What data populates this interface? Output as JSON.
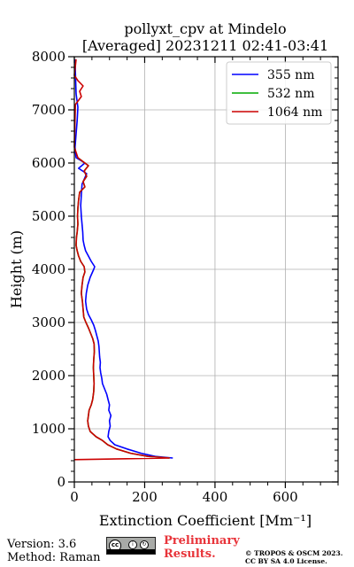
{
  "chart_data": {
    "type": "line",
    "title": "pollyxt_cpv at Mindelo",
    "subtitle": "[Averaged] 20231211 02:41-03:41",
    "xlabel": "Extinction Coefficient [Mm⁻¹]",
    "ylabel": "Height (m)",
    "xlim": [
      0,
      750
    ],
    "ylim": [
      0,
      8000
    ],
    "xticks": [
      0,
      200,
      400,
      600
    ],
    "yticks": [
      0,
      1000,
      2000,
      3000,
      4000,
      5000,
      6000,
      7000,
      8000
    ],
    "grid": true,
    "legend_position": "top-right",
    "series": [
      {
        "name": "355 nm",
        "color": "#0000ff",
        "points": [
          [
            280,
            450
          ],
          [
            230,
            480
          ],
          [
            190,
            540
          ],
          [
            150,
            620
          ],
          [
            115,
            700
          ],
          [
            102,
            780
          ],
          [
            96,
            850
          ],
          [
            98,
            950
          ],
          [
            102,
            1050
          ],
          [
            100,
            1150
          ],
          [
            104,
            1250
          ],
          [
            98,
            1350
          ],
          [
            100,
            1450
          ],
          [
            96,
            1550
          ],
          [
            92,
            1650
          ],
          [
            86,
            1750
          ],
          [
            80,
            1850
          ],
          [
            78,
            1950
          ],
          [
            75,
            2050
          ],
          [
            73,
            2150
          ],
          [
            74,
            2250
          ],
          [
            72,
            2350
          ],
          [
            71,
            2450
          ],
          [
            70,
            2550
          ],
          [
            68,
            2650
          ],
          [
            64,
            2750
          ],
          [
            60,
            2850
          ],
          [
            55,
            2950
          ],
          [
            48,
            3050
          ],
          [
            40,
            3150
          ],
          [
            35,
            3250
          ],
          [
            32,
            3400
          ],
          [
            34,
            3550
          ],
          [
            38,
            3700
          ],
          [
            45,
            3850
          ],
          [
            55,
            4000
          ],
          [
            58,
            4050
          ],
          [
            48,
            4150
          ],
          [
            40,
            4250
          ],
          [
            32,
            4350
          ],
          [
            28,
            4450
          ],
          [
            25,
            4550
          ],
          [
            24,
            4700
          ],
          [
            22,
            4850
          ],
          [
            20,
            5000
          ],
          [
            18,
            5200
          ],
          [
            20,
            5400
          ],
          [
            22,
            5600
          ],
          [
            35,
            5800
          ],
          [
            12,
            5900
          ],
          [
            30,
            6000
          ],
          [
            5,
            6100
          ],
          [
            3,
            6200
          ],
          [
            2,
            6300
          ],
          [
            8,
            6800
          ],
          [
            10,
            7050
          ],
          [
            5,
            7300
          ],
          [
            3,
            7700
          ],
          [
            2,
            7950
          ]
        ]
      },
      {
        "name": "532 nm",
        "color": "#00aa00",
        "points": [
          [
            270,
            450
          ],
          [
            210,
            480
          ],
          [
            160,
            540
          ],
          [
            120,
            620
          ],
          [
            95,
            700
          ],
          [
            80,
            780
          ],
          [
            62,
            850
          ],
          [
            45,
            950
          ],
          [
            40,
            1050
          ],
          [
            38,
            1150
          ],
          [
            40,
            1250
          ],
          [
            42,
            1350
          ],
          [
            48,
            1450
          ],
          [
            52,
            1550
          ],
          [
            55,
            1700
          ],
          [
            56,
            1850
          ],
          [
            55,
            2000
          ],
          [
            54,
            2150
          ],
          [
            55,
            2300
          ],
          [
            57,
            2450
          ],
          [
            56,
            2600
          ],
          [
            52,
            2700
          ],
          [
            46,
            2800
          ],
          [
            40,
            2900
          ],
          [
            33,
            3000
          ],
          [
            27,
            3100
          ],
          [
            25,
            3250
          ],
          [
            23,
            3400
          ],
          [
            20,
            3550
          ],
          [
            22,
            3700
          ],
          [
            25,
            3850
          ],
          [
            30,
            3950
          ],
          [
            28,
            4050
          ],
          [
            18,
            4150
          ],
          [
            12,
            4250
          ],
          [
            8,
            4350
          ],
          [
            5,
            4450
          ],
          [
            6,
            4600
          ],
          [
            8,
            4700
          ],
          [
            10,
            4850
          ],
          [
            9,
            5000
          ],
          [
            10,
            5150
          ],
          [
            12,
            5300
          ],
          [
            15,
            5450
          ],
          [
            30,
            5550
          ],
          [
            25,
            5650
          ],
          [
            35,
            5750
          ],
          [
            28,
            5850
          ],
          [
            40,
            5950
          ],
          [
            20,
            6050
          ],
          [
            10,
            6100
          ]
        ]
      },
      {
        "name": "1064 nm",
        "color": "#cc0000",
        "points": [
          [
            0,
            420
          ],
          [
            270,
            450
          ],
          [
            210,
            480
          ],
          [
            160,
            540
          ],
          [
            120,
            620
          ],
          [
            95,
            700
          ],
          [
            80,
            780
          ],
          [
            62,
            850
          ],
          [
            45,
            950
          ],
          [
            40,
            1050
          ],
          [
            38,
            1150
          ],
          [
            40,
            1250
          ],
          [
            42,
            1350
          ],
          [
            48,
            1450
          ],
          [
            52,
            1550
          ],
          [
            55,
            1700
          ],
          [
            56,
            1850
          ],
          [
            55,
            2000
          ],
          [
            54,
            2150
          ],
          [
            55,
            2300
          ],
          [
            57,
            2450
          ],
          [
            56,
            2600
          ],
          [
            52,
            2700
          ],
          [
            46,
            2800
          ],
          [
            40,
            2900
          ],
          [
            33,
            3000
          ],
          [
            27,
            3100
          ],
          [
            25,
            3250
          ],
          [
            23,
            3400
          ],
          [
            20,
            3550
          ],
          [
            22,
            3700
          ],
          [
            25,
            3850
          ],
          [
            30,
            3950
          ],
          [
            28,
            4050
          ],
          [
            18,
            4150
          ],
          [
            12,
            4250
          ],
          [
            8,
            4350
          ],
          [
            5,
            4450
          ],
          [
            6,
            4600
          ],
          [
            8,
            4700
          ],
          [
            10,
            4850
          ],
          [
            9,
            5000
          ],
          [
            10,
            5150
          ],
          [
            12,
            5300
          ],
          [
            15,
            5450
          ],
          [
            30,
            5550
          ],
          [
            25,
            5650
          ],
          [
            35,
            5750
          ],
          [
            28,
            5850
          ],
          [
            40,
            5950
          ],
          [
            20,
            6050
          ],
          [
            10,
            6100
          ],
          [
            5,
            6200
          ],
          [
            0,
            6300
          ],
          [
            3,
            7100
          ],
          [
            20,
            7250
          ],
          [
            15,
            7350
          ],
          [
            25,
            7450
          ],
          [
            10,
            7550
          ],
          [
            0,
            7650
          ],
          [
            5,
            7950
          ]
        ]
      }
    ]
  },
  "footer": {
    "version": "Version: 3.6",
    "method": "Method: Raman",
    "license_badge": {
      "cc": "cc",
      "by": "BY",
      "sa": "SA"
    },
    "preliminary_line1": "Preliminary",
    "preliminary_line2": "Results.",
    "copyright_line1": "© TROPOS & OSCM 2023.",
    "copyright_line2": "CC BY SA 4.0 License."
  }
}
